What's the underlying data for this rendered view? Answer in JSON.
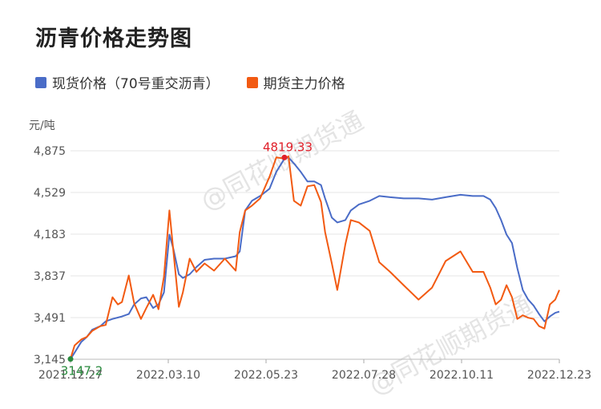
{
  "title": "沥青价格走势图",
  "chart_data": {
    "type": "line",
    "title": "沥青价格走势图",
    "ylabel": "元/吨",
    "xlabel": "",
    "ylim": [
      3145,
      4875
    ],
    "yticks": [
      "4,875",
      "4,529",
      "4,183",
      "3,837",
      "3,491",
      "3,145"
    ],
    "ytick_values": [
      4875,
      4529,
      4183,
      3837,
      3491,
      3145
    ],
    "xticks": [
      "2021.12.27",
      "2022.03.10",
      "2022.05.23",
      "2022.07.28",
      "2022.10.11",
      "2022.12.23"
    ],
    "x_start": "2021-12-27",
    "x_end": "2022-12-23",
    "legend_position": "top-left",
    "grid": true,
    "series": [
      {
        "name": "现货价格（70号重交沥青）",
        "color": "#4a6cc7",
        "points": [
          [
            "2021-12-27",
            3147
          ],
          [
            "2021-12-30",
            3200
          ],
          [
            "2022-01-04",
            3290
          ],
          [
            "2022-01-08",
            3330
          ],
          [
            "2022-01-12",
            3390
          ],
          [
            "2022-01-18",
            3420
          ],
          [
            "2022-01-22",
            3460
          ],
          [
            "2022-01-27",
            3480
          ],
          [
            "2022-02-03",
            3500
          ],
          [
            "2022-02-08",
            3520
          ],
          [
            "2022-02-12",
            3600
          ],
          [
            "2022-02-17",
            3650
          ],
          [
            "2022-02-21",
            3660
          ],
          [
            "2022-02-26",
            3570
          ],
          [
            "2022-03-02",
            3600
          ],
          [
            "2022-03-06",
            3700
          ],
          [
            "2022-03-10",
            4180
          ],
          [
            "2022-03-13",
            4060
          ],
          [
            "2022-03-17",
            3850
          ],
          [
            "2022-03-20",
            3820
          ],
          [
            "2022-03-25",
            3850
          ],
          [
            "2022-03-30",
            3910
          ],
          [
            "2022-04-05",
            3970
          ],
          [
            "2022-04-12",
            3980
          ],
          [
            "2022-04-20",
            3980
          ],
          [
            "2022-04-28",
            4000
          ],
          [
            "2022-05-01",
            4040
          ],
          [
            "2022-05-05",
            4380
          ],
          [
            "2022-05-10",
            4460
          ],
          [
            "2022-05-16",
            4500
          ],
          [
            "2022-05-23",
            4560
          ],
          [
            "2022-05-28",
            4700
          ],
          [
            "2022-06-03",
            4810
          ],
          [
            "2022-06-06",
            4820
          ],
          [
            "2022-06-10",
            4770
          ],
          [
            "2022-06-15",
            4700
          ],
          [
            "2022-06-20",
            4620
          ],
          [
            "2022-06-25",
            4620
          ],
          [
            "2022-06-30",
            4590
          ],
          [
            "2022-07-03",
            4480
          ],
          [
            "2022-07-08",
            4320
          ],
          [
            "2022-07-12",
            4280
          ],
          [
            "2022-07-18",
            4300
          ],
          [
            "2022-07-22",
            4380
          ],
          [
            "2022-07-28",
            4430
          ],
          [
            "2022-08-05",
            4460
          ],
          [
            "2022-08-12",
            4500
          ],
          [
            "2022-08-20",
            4490
          ],
          [
            "2022-08-30",
            4480
          ],
          [
            "2022-09-10",
            4480
          ],
          [
            "2022-09-20",
            4470
          ],
          [
            "2022-09-30",
            4490
          ],
          [
            "2022-10-11",
            4510
          ],
          [
            "2022-10-20",
            4500
          ],
          [
            "2022-10-28",
            4500
          ],
          [
            "2022-11-02",
            4470
          ],
          [
            "2022-11-06",
            4400
          ],
          [
            "2022-11-10",
            4300
          ],
          [
            "2022-11-14",
            4180
          ],
          [
            "2022-11-18",
            4110
          ],
          [
            "2022-11-22",
            3900
          ],
          [
            "2022-11-26",
            3720
          ],
          [
            "2022-11-30",
            3640
          ],
          [
            "2022-12-04",
            3590
          ],
          [
            "2022-12-08",
            3520
          ],
          [
            "2022-12-12",
            3460
          ],
          [
            "2022-12-16",
            3500
          ],
          [
            "2022-12-20",
            3530
          ],
          [
            "2022-12-23",
            3540
          ]
        ]
      },
      {
        "name": "期货主力价格",
        "color": "#f25a12",
        "points": [
          [
            "2021-12-27",
            3150
          ],
          [
            "2021-12-30",
            3260
          ],
          [
            "2022-01-04",
            3310
          ],
          [
            "2022-01-08",
            3330
          ],
          [
            "2022-01-12",
            3380
          ],
          [
            "2022-01-18",
            3420
          ],
          [
            "2022-01-22",
            3430
          ],
          [
            "2022-01-27",
            3660
          ],
          [
            "2022-01-31",
            3600
          ],
          [
            "2022-02-03",
            3620
          ],
          [
            "2022-02-08",
            3840
          ],
          [
            "2022-02-12",
            3610
          ],
          [
            "2022-02-17",
            3480
          ],
          [
            "2022-02-21",
            3570
          ],
          [
            "2022-02-26",
            3680
          ],
          [
            "2022-03-02",
            3560
          ],
          [
            "2022-03-06",
            3830
          ],
          [
            "2022-03-10",
            4380
          ],
          [
            "2022-03-13",
            4040
          ],
          [
            "2022-03-17",
            3580
          ],
          [
            "2022-03-20",
            3700
          ],
          [
            "2022-03-25",
            3980
          ],
          [
            "2022-03-30",
            3870
          ],
          [
            "2022-04-05",
            3940
          ],
          [
            "2022-04-12",
            3880
          ],
          [
            "2022-04-20",
            3980
          ],
          [
            "2022-04-28",
            3880
          ],
          [
            "2022-05-01",
            4200
          ],
          [
            "2022-05-05",
            4380
          ],
          [
            "2022-05-10",
            4420
          ],
          [
            "2022-05-16",
            4480
          ],
          [
            "2022-05-23",
            4660
          ],
          [
            "2022-05-28",
            4820
          ],
          [
            "2022-06-03",
            4810
          ],
          [
            "2022-06-06",
            4830
          ],
          [
            "2022-06-10",
            4460
          ],
          [
            "2022-06-15",
            4420
          ],
          [
            "2022-06-20",
            4580
          ],
          [
            "2022-06-25",
            4590
          ],
          [
            "2022-06-30",
            4450
          ],
          [
            "2022-07-03",
            4200
          ],
          [
            "2022-07-08",
            3940
          ],
          [
            "2022-07-12",
            3720
          ],
          [
            "2022-07-18",
            4100
          ],
          [
            "2022-07-22",
            4300
          ],
          [
            "2022-07-28",
            4280
          ],
          [
            "2022-08-05",
            4210
          ],
          [
            "2022-08-12",
            3950
          ],
          [
            "2022-08-20",
            3870
          ],
          [
            "2022-08-30",
            3760
          ],
          [
            "2022-09-10",
            3640
          ],
          [
            "2022-09-20",
            3740
          ],
          [
            "2022-09-30",
            3960
          ],
          [
            "2022-10-11",
            4040
          ],
          [
            "2022-10-20",
            3870
          ],
          [
            "2022-10-28",
            3870
          ],
          [
            "2022-11-02",
            3740
          ],
          [
            "2022-11-06",
            3600
          ],
          [
            "2022-11-10",
            3640
          ],
          [
            "2022-11-14",
            3760
          ],
          [
            "2022-11-18",
            3660
          ],
          [
            "2022-11-22",
            3480
          ],
          [
            "2022-11-26",
            3510
          ],
          [
            "2022-11-30",
            3490
          ],
          [
            "2022-12-04",
            3480
          ],
          [
            "2022-12-08",
            3420
          ],
          [
            "2022-12-12",
            3400
          ],
          [
            "2022-12-16",
            3600
          ],
          [
            "2022-12-20",
            3640
          ],
          [
            "2022-12-23",
            3720
          ]
        ]
      }
    ],
    "annotations": [
      {
        "text": "4819.33",
        "date": "2022-06-03",
        "value": 4819.33,
        "color": "#e0202a"
      },
      {
        "text": "3147.2",
        "date": "2021-12-27",
        "value": 3147.2,
        "color": "#2a8a3e"
      }
    ],
    "watermark": "@同花顺期货通"
  }
}
